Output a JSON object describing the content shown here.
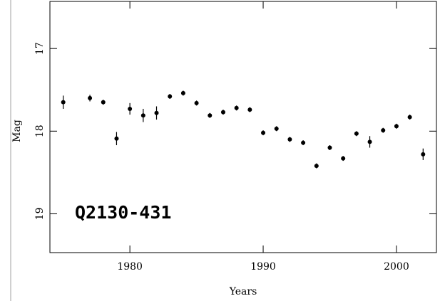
{
  "chart_data": {
    "type": "scatter",
    "xlabel": "Years",
    "ylabel": "Mag",
    "annotation": "Q2130-431",
    "color": "#000000",
    "annotation_color": "#2a3df0",
    "x": [
      1975,
      1977,
      1978,
      1979,
      1980,
      1981,
      1982,
      1983,
      1984,
      1985,
      1986,
      1987,
      1988,
      1989,
      1990,
      1991,
      1992,
      1993,
      1994,
      1995,
      1996,
      1997,
      1998,
      1999,
      2000,
      2001,
      2002
    ],
    "values": [
      17.65,
      17.6,
      17.65,
      18.09,
      17.73,
      17.81,
      17.78,
      17.58,
      17.54,
      17.66,
      17.81,
      17.77,
      17.72,
      17.74,
      18.02,
      17.97,
      18.1,
      18.14,
      18.42,
      18.2,
      18.33,
      18.03,
      18.13,
      17.99,
      17.94,
      17.83,
      18.28
    ],
    "errors": [
      0.08,
      0.04,
      0.03,
      0.08,
      0.07,
      0.08,
      0.08,
      0.03,
      0.03,
      0.03,
      0.03,
      0.03,
      0.03,
      0.03,
      0.03,
      0.03,
      0.03,
      0.03,
      0.03,
      0.03,
      0.03,
      0.03,
      0.07,
      0.03,
      0.03,
      0.03,
      0.07
    ],
    "xlim": [
      1974,
      2003
    ],
    "ylim": [
      19.47,
      16.43
    ],
    "xticks": [
      1980,
      1990,
      2000
    ],
    "yticks": [
      17,
      18,
      19
    ]
  }
}
